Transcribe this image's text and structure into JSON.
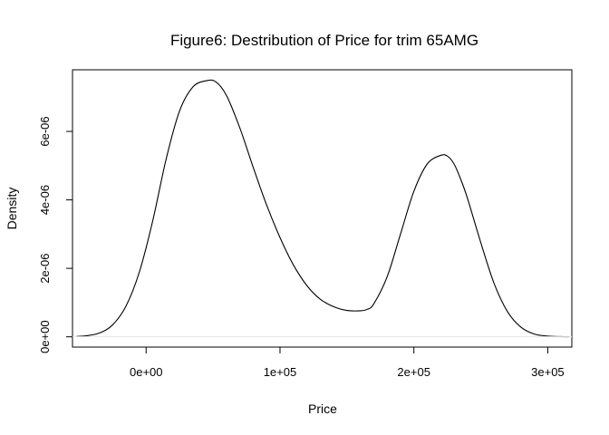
{
  "chart_data": {
    "type": "line",
    "title": "Figure6: Destribution of Price for trim 65AMG",
    "xlabel": "Price",
    "ylabel": "Density",
    "xlim": [
      -55000,
      318000
    ],
    "ylim": [
      -3e-07,
      7.8e-06
    ],
    "x_ticks": [
      {
        "value": 0,
        "label": "0e+00"
      },
      {
        "value": 100000,
        "label": "1e+05"
      },
      {
        "value": 200000,
        "label": "2e+05"
      },
      {
        "value": 300000,
        "label": "3e+05"
      }
    ],
    "y_ticks": [
      {
        "value": 0,
        "label": "0e+00"
      },
      {
        "value": 2e-06,
        "label": "2e-06"
      },
      {
        "value": 4e-06,
        "label": "4e-06"
      },
      {
        "value": 6e-06,
        "label": "6e-06"
      }
    ],
    "series": [
      {
        "color": "#000000",
        "x": [
          -52000,
          -45000,
          -35000,
          -25000,
          -15000,
          -5000,
          5000,
          15000,
          25000,
          35000,
          45000,
          52000,
          60000,
          70000,
          80000,
          90000,
          100000,
          110000,
          120000,
          130000,
          140000,
          150000,
          160000,
          165000,
          170000,
          180000,
          190000,
          200000,
          210000,
          220000,
          225000,
          230000,
          235000,
          240000,
          250000,
          260000,
          270000,
          280000,
          290000,
          300000,
          310000,
          316000
        ],
        "y": [
          1e-08,
          3e-08,
          1.1e-07,
          3.5e-07,
          9e-07,
          1.9e-06,
          3.4e-06,
          5.2e-06,
          6.6e-06,
          7.3e-06,
          7.48e-06,
          7.45e-06,
          7.05e-06,
          6.1e-06,
          4.95e-06,
          3.85e-06,
          2.9e-06,
          2.1e-06,
          1.5e-06,
          1.1e-06,
          8.8e-07,
          7.7e-07,
          7.6e-07,
          8e-07,
          9.6e-07,
          1.75e-06,
          3e-06,
          4.25e-06,
          5.05e-06,
          5.3e-06,
          5.28e-06,
          5.05e-06,
          4.6e-06,
          4.05e-06,
          2.75e-06,
          1.55e-06,
          7.3e-07,
          2.8e-07,
          8e-08,
          2e-08,
          5e-09,
          2e-09
        ]
      }
    ]
  }
}
